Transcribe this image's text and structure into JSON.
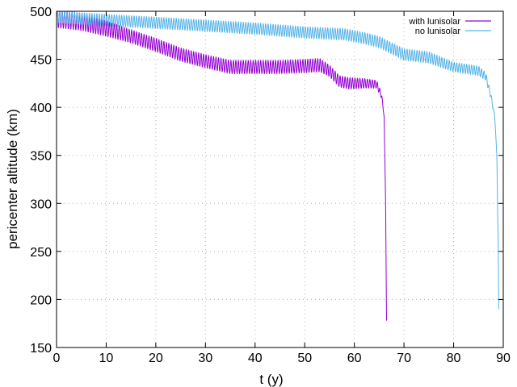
{
  "chart_data": {
    "type": "line",
    "title": "",
    "xlabel": "t (y)",
    "ylabel": "pericenter altitude (km)",
    "xlim": [
      0,
      90
    ],
    "ylim": [
      150,
      500
    ],
    "xticks": [
      "0",
      "10",
      "20",
      "30",
      "40",
      "50",
      "60",
      "70",
      "80",
      "90"
    ],
    "yticks": [
      "150",
      "200",
      "250",
      "300",
      "350",
      "400",
      "450",
      "500"
    ],
    "grid": true,
    "legend_position": "top-right",
    "oscillation_period_y": 0.5,
    "series": [
      {
        "name": "with lunisolar",
        "color": "#9400d3",
        "x": [
          0,
          5,
          10,
          15,
          20,
          25,
          30,
          35,
          40,
          45,
          50,
          53,
          55,
          57,
          59,
          62,
          64.5,
          65.5,
          66.0,
          66.3,
          66.4,
          66.5
        ],
        "y": [
          493,
          489,
          482,
          474,
          465,
          455,
          448,
          442,
          442,
          442,
          443,
          444,
          438,
          427,
          425,
          425,
          424,
          412,
          390,
          300,
          230,
          165
        ],
        "amplitude": [
          10,
          9,
          8,
          7,
          7,
          7,
          7,
          7,
          7,
          7,
          7,
          7,
          6,
          6,
          6,
          5,
          4,
          3,
          0,
          0,
          0,
          0
        ]
      },
      {
        "name": "no lunisolar",
        "color": "#56b4e9",
        "x": [
          0,
          10,
          20,
          30,
          40,
          50,
          58,
          62,
          65,
          70,
          75,
          80,
          85,
          86.5,
          87.5,
          88.3,
          88.7,
          89.0,
          89.1
        ],
        "y": [
          494,
          491,
          488,
          485,
          482,
          478,
          476,
          472,
          468,
          455,
          452,
          442,
          438,
          432,
          412,
          390,
          350,
          250,
          175
        ],
        "amplitude": [
          6,
          6,
          6,
          6,
          6,
          6,
          6,
          6,
          6,
          6,
          6,
          5,
          5,
          4,
          3,
          2,
          0,
          0,
          0
        ]
      }
    ]
  }
}
